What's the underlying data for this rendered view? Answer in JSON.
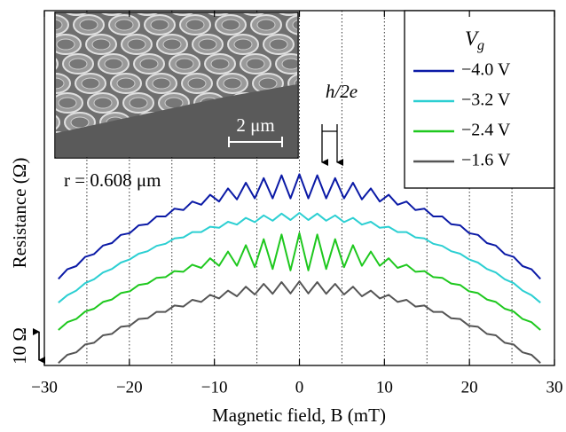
{
  "chart_data": {
    "type": "line",
    "xlabel": "Magnetic field, B (mT)",
    "ylabel": "Resistance (Ω)",
    "xlim": [
      -30,
      30
    ],
    "xticks": [
      -30,
      -20,
      -10,
      0,
      10,
      20,
      30
    ],
    "xgrid": [
      -25,
      -20,
      -15,
      -10,
      -5,
      0,
      5,
      10,
      15,
      20,
      25
    ],
    "ylim": [
      0,
      100
    ],
    "legend_title": "V",
    "legend_title_subscript": "g",
    "legend": "upper right",
    "scale_bar": {
      "label": "10 Ω",
      "value": 10
    },
    "annotations": {
      "radius": "r = 0.608 μm",
      "period": "h/2e",
      "inset_scale": "2 μm"
    },
    "x": [
      -28.35,
      -27.3,
      -26.25,
      -25.2,
      -24.15,
      -23.1,
      -22.05,
      -21,
      -19.95,
      -18.9,
      -17.85,
      -16.8,
      -15.75,
      -14.7,
      -13.65,
      -12.6,
      -11.55,
      -10.5,
      -9.45,
      -8.4,
      -7.35,
      -6.3,
      -5.25,
      -4.2,
      -3.15,
      -2.1,
      -1.05,
      0,
      1.05,
      2.1,
      3.15,
      4.2,
      5.25,
      6.3,
      7.35,
      8.4,
      9.45,
      10.5,
      11.55,
      12.6,
      13.65,
      14.7,
      15.75,
      16.8,
      17.85,
      18.9,
      19.95,
      21,
      22.05,
      23.1,
      24.15,
      25.2,
      26.25,
      27.3,
      28.35
    ],
    "series": [
      {
        "name": "−4.0 V",
        "color": "#0b1aa6",
        "values": [
          24.4,
          27.1,
          28.0,
          30.6,
          31.4,
          33.8,
          34.5,
          36.8,
          37.3,
          39.5,
          39.8,
          42.0,
          42.0,
          44.2,
          43.8,
          46.2,
          45.3,
          48.1,
          46.2,
          49.9,
          46.8,
          51.5,
          47.1,
          52.8,
          47.1,
          53.6,
          47.1,
          53.9,
          47.1,
          53.6,
          47.1,
          52.8,
          47.1,
          51.5,
          46.8,
          49.9,
          46.2,
          48.1,
          45.3,
          46.2,
          43.8,
          44.2,
          42.0,
          42.0,
          39.8,
          39.5,
          37.3,
          36.8,
          34.5,
          33.8,
          31.4,
          30.6,
          28.0,
          27.1,
          24.4
        ]
      },
      {
        "name": "−3.2 V",
        "color": "#2ccfd2",
        "values": [
          17.7,
          19.8,
          21.1,
          23.2,
          24.3,
          26.2,
          27.2,
          29.0,
          29.9,
          31.5,
          32.2,
          33.7,
          34.3,
          35.8,
          36.1,
          37.6,
          37.6,
          39.1,
          38.8,
          40.5,
          39.7,
          41.6,
          40.4,
          42.3,
          40.8,
          42.8,
          41.0,
          43.0,
          41.0,
          42.8,
          40.8,
          42.3,
          40.4,
          41.6,
          39.7,
          40.5,
          38.8,
          39.1,
          37.6,
          37.6,
          36.1,
          35.8,
          34.3,
          33.7,
          32.2,
          31.5,
          29.9,
          29.0,
          27.2,
          26.2,
          24.3,
          23.2,
          21.1,
          19.8,
          17.7
        ]
      },
      {
        "name": "−2.4 V",
        "color": "#1ec81e",
        "values": [
          10.0,
          12.2,
          13.1,
          15.2,
          16.0,
          17.9,
          18.6,
          20.4,
          20.9,
          22.7,
          23.1,
          24.7,
          24.9,
          26.6,
          26.4,
          28.4,
          27.5,
          30.2,
          28.1,
          32.1,
          28.1,
          33.9,
          27.7,
          35.6,
          27.2,
          36.9,
          26.8,
          37.3,
          26.8,
          36.9,
          27.2,
          35.6,
          27.7,
          33.9,
          28.1,
          32.1,
          28.1,
          30.2,
          27.5,
          28.4,
          26.4,
          26.6,
          24.9,
          24.7,
          23.1,
          22.7,
          20.9,
          20.4,
          18.6,
          17.9,
          16.0,
          15.2,
          13.1,
          12.2,
          10.0
        ]
      },
      {
        "name": "−1.6 V",
        "color": "#555555",
        "values": [
          0.7,
          3.0,
          3.7,
          5.9,
          6.4,
          8.5,
          8.9,
          10.9,
          11.2,
          13.1,
          13.3,
          15.1,
          15.1,
          16.9,
          16.6,
          18.5,
          17.9,
          19.9,
          18.9,
          21.1,
          19.5,
          22.2,
          20.0,
          23.0,
          20.2,
          23.5,
          20.3,
          23.7,
          20.3,
          23.5,
          20.2,
          23.0,
          20.0,
          22.2,
          19.5,
          21.1,
          18.9,
          19.9,
          17.9,
          18.5,
          16.6,
          16.9,
          15.1,
          15.1,
          13.3,
          13.1,
          11.2,
          10.9,
          8.9,
          8.5,
          6.4,
          5.9,
          3.7,
          3.0,
          0.7
        ]
      }
    ]
  }
}
